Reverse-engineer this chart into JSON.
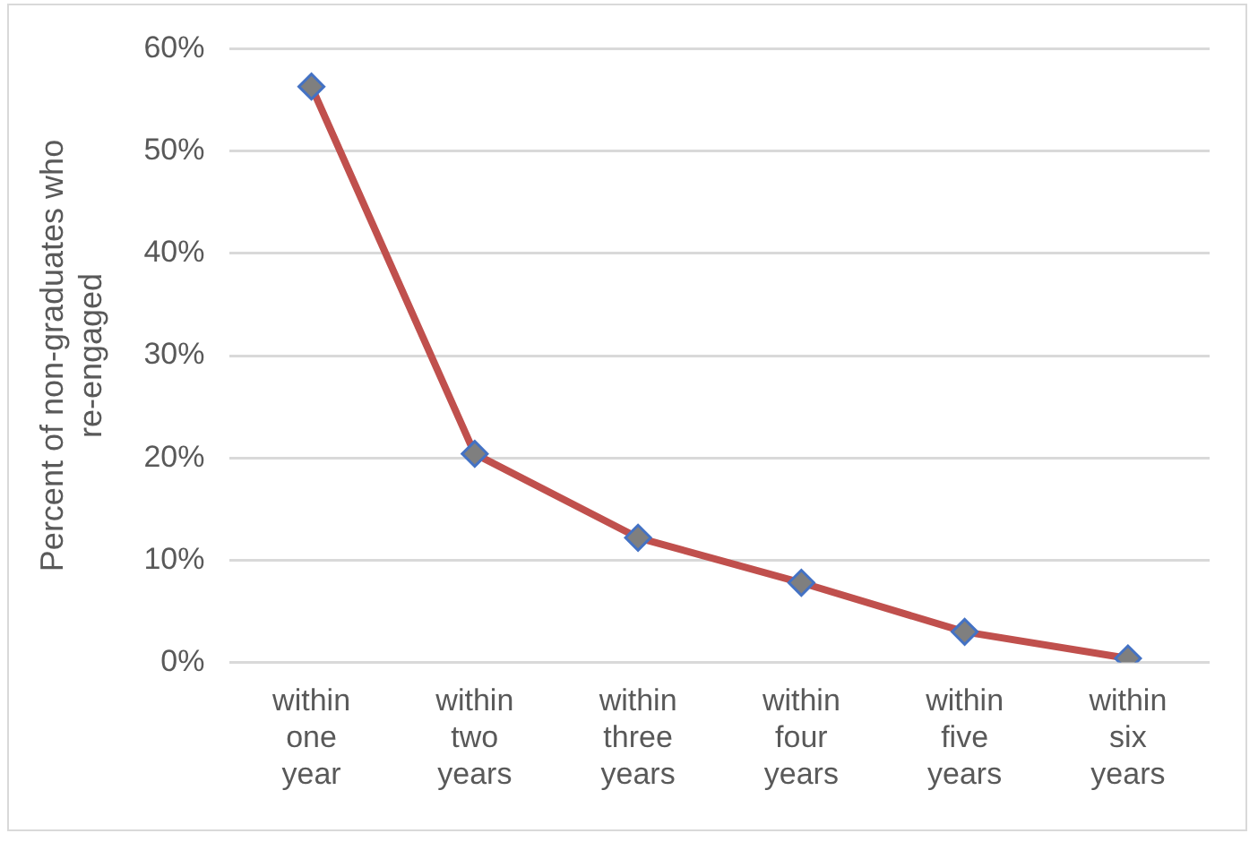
{
  "chart_data": {
    "type": "line",
    "ylabel": "Percent of non-graduates who re-engaged",
    "categories": [
      "within one year",
      "within two years",
      "within three years",
      "within four years",
      "within five years",
      "within six years"
    ],
    "series": [
      {
        "color": "#c0504d",
        "values": [
          56.3,
          20.4,
          12.2,
          7.8,
          3.0,
          0.4
        ]
      }
    ],
    "ylim": [
      0,
      60
    ],
    "yticks": [
      {
        "value": 0,
        "label": "0%"
      },
      {
        "value": 10,
        "label": "10%"
      },
      {
        "value": 20,
        "label": "20%"
      },
      {
        "value": 30,
        "label": "30%"
      },
      {
        "value": 40,
        "label": "40%"
      },
      {
        "value": 50,
        "label": "50%"
      },
      {
        "value": 60,
        "label": "60%"
      }
    ],
    "grid": "y",
    "legend": false,
    "marker": "diamond",
    "line_style": "solid"
  }
}
